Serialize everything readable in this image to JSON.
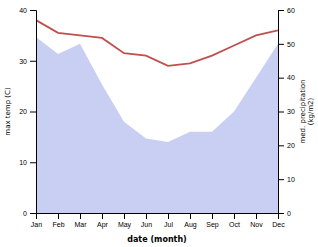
{
  "chart_data": {
    "type": "line",
    "xlabel": "date (month)",
    "ylabel": "max temp (C)",
    "y2label": "med. precipitation\n(kg/m2)",
    "categories": [
      "Jan",
      "Feb",
      "Mar",
      "Apr",
      "May",
      "Jun",
      "Jul",
      "Aug",
      "Sep",
      "Oct",
      "Nov",
      "Dec"
    ],
    "series": [
      {
        "type": "area",
        "axis": "y2",
        "color": "#b0baee",
        "values": [
          52,
          47,
          50,
          38,
          27,
          22,
          21,
          24,
          24,
          30,
          40,
          50
        ]
      },
      {
        "type": "line",
        "color": "#c0504d",
        "values": [
          38,
          35.5,
          35,
          34.5,
          31.5,
          31,
          29,
          29.5,
          31,
          33,
          35,
          36
        ]
      }
    ],
    "ylim": [
      0,
      40
    ],
    "yticks": [
      0,
      10,
      20,
      30,
      40
    ],
    "y2lim": [
      0,
      60
    ],
    "y2ticks": [
      0,
      10,
      20,
      30,
      40,
      50,
      60
    ]
  }
}
